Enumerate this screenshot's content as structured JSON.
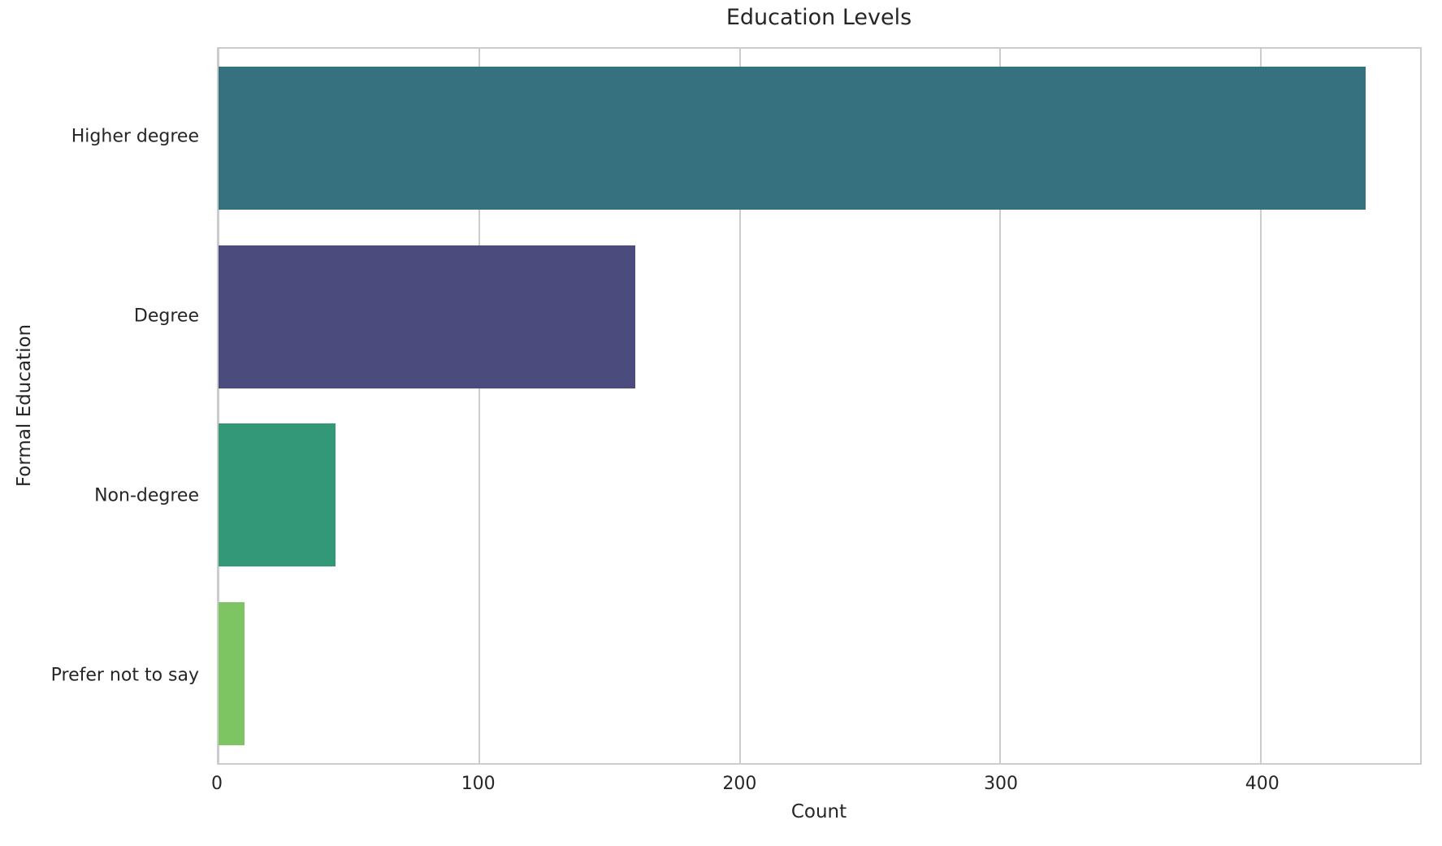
{
  "chart_data": {
    "type": "bar",
    "orientation": "horizontal",
    "title": "Education Levels",
    "xlabel": "Count",
    "ylabel": "Formal Education",
    "categories": [
      "Higher degree",
      "Degree",
      "Non-degree",
      "Prefer not to say"
    ],
    "values": [
      440,
      160,
      45,
      10
    ],
    "colors": [
      "#35717f",
      "#4b4b7d",
      "#339878",
      "#7dc462"
    ],
    "xlim": [
      0,
      461
    ],
    "xticks": [
      0,
      100,
      200,
      300,
      400
    ],
    "bar_fraction_of_band": 0.8,
    "grid": "vertical-only",
    "legend": "none",
    "background": "#ffffff",
    "grid_color": "#cccccc",
    "text_color": "#262626"
  }
}
